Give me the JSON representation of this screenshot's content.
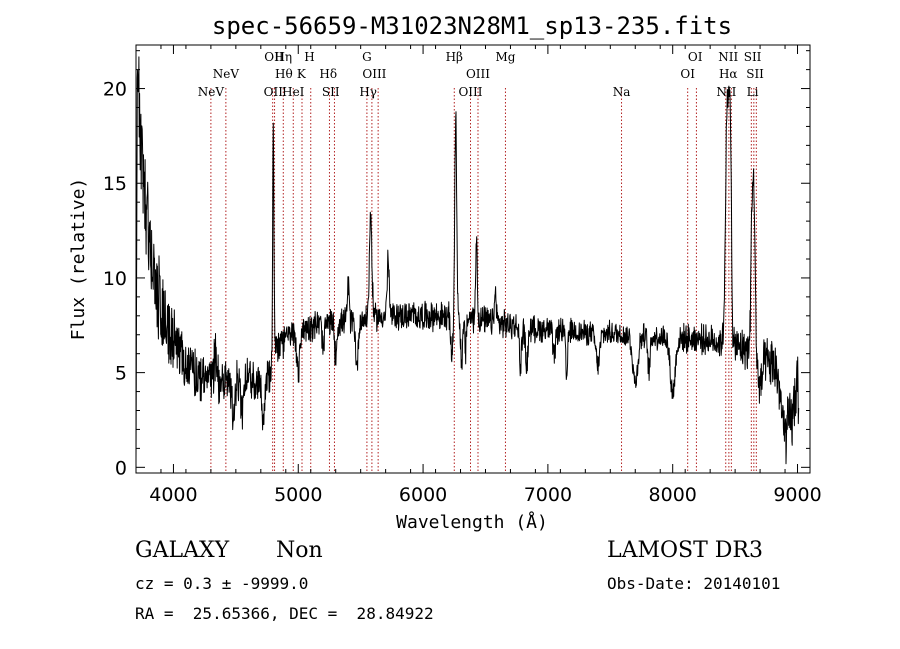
{
  "chart_data": {
    "type": "line",
    "title": "spec-56659-M31023N28M1_sp13-235.fits",
    "xlabel": "Wavelength (Å)",
    "ylabel": "Flux (relative)",
    "xlim": [
      3700,
      9100
    ],
    "ylim": [
      -0.3,
      22.3
    ],
    "xticks": [
      4000,
      5000,
      6000,
      7000,
      8000,
      9000
    ],
    "yticks": [
      0,
      5,
      10,
      15,
      20
    ],
    "xtick_labels": [
      "4000",
      "5000",
      "6000",
      "7000",
      "8000",
      "9000"
    ],
    "ytick_labels": [
      "0",
      "5",
      "10",
      "15",
      "20"
    ],
    "series": [
      {
        "name": "flux",
        "color": "#000000",
        "anchors": [
          [
            3700,
            0.5
          ],
          [
            3712,
            22.0
          ],
          [
            3730,
            18.0
          ],
          [
            3760,
            15.0
          ],
          [
            3800,
            12.5
          ],
          [
            3850,
            10.0
          ],
          [
            3900,
            8.5
          ],
          [
            3950,
            7.5
          ],
          [
            4000,
            6.5
          ],
          [
            4100,
            5.5
          ],
          [
            4200,
            5.0
          ],
          [
            4300,
            4.7
          ],
          [
            4400,
            4.6
          ],
          [
            4500,
            4.6
          ],
          [
            4600,
            4.6
          ],
          [
            4700,
            4.6
          ],
          [
            4780,
            4.8
          ],
          [
            4800,
            6.2
          ],
          [
            4850,
            6.5
          ],
          [
            4900,
            6.8
          ],
          [
            5000,
            7.2
          ],
          [
            5100,
            7.5
          ],
          [
            5200,
            7.6
          ],
          [
            5300,
            7.6
          ],
          [
            5400,
            7.7
          ],
          [
            5500,
            7.8
          ],
          [
            5600,
            7.9
          ],
          [
            5700,
            8.0
          ],
          [
            5800,
            8.0
          ],
          [
            5900,
            8.0
          ],
          [
            6000,
            8.0
          ],
          [
            6100,
            8.0
          ],
          [
            6200,
            7.9
          ],
          [
            6300,
            7.8
          ],
          [
            6400,
            7.9
          ],
          [
            6500,
            7.7
          ],
          [
            6600,
            7.6
          ],
          [
            6700,
            7.5
          ],
          [
            6800,
            7.4
          ],
          [
            6900,
            7.3
          ],
          [
            7000,
            7.3
          ],
          [
            7100,
            7.2
          ],
          [
            7200,
            7.2
          ],
          [
            7300,
            7.1
          ],
          [
            7400,
            7.0
          ],
          [
            7500,
            7.1
          ],
          [
            7600,
            7.0
          ],
          [
            7700,
            7.0
          ],
          [
            7800,
            6.9
          ],
          [
            7900,
            6.9
          ],
          [
            8000,
            6.9
          ],
          [
            8100,
            6.8
          ],
          [
            8200,
            6.8
          ],
          [
            8300,
            6.7
          ],
          [
            8400,
            6.6
          ],
          [
            8500,
            6.4
          ],
          [
            8600,
            6.2
          ],
          [
            8700,
            5.6
          ],
          [
            8800,
            5.4
          ],
          [
            8900,
            5.2
          ],
          [
            9000,
            5.0
          ],
          [
            9010,
            2.0
          ]
        ],
        "features": [
          [
            4800,
            11.5,
            5
          ],
          [
            6262,
            10.5,
            8
          ],
          [
            6428,
            4.5,
            6
          ],
          [
            5580,
            5.5,
            10
          ],
          [
            8433,
            10.0,
            12
          ],
          [
            8460,
            12.0,
            14
          ],
          [
            8638,
            8.5,
            10
          ],
          [
            8655,
            5.5,
            8
          ],
          [
            8480,
            -3.0,
            8
          ],
          [
            6310,
            -2.2,
            8
          ],
          [
            6340,
            -1.8,
            6
          ],
          [
            5470,
            -2.5,
            10
          ],
          [
            4720,
            -2.0,
            10
          ],
          [
            4550,
            -1.5,
            10
          ],
          [
            5720,
            3.0,
            8
          ],
          [
            6830,
            -2.0,
            10
          ],
          [
            8900,
            -3.5,
            30
          ],
          [
            8960,
            -2.0,
            20
          ],
          [
            8000,
            -3.0,
            20
          ],
          [
            7700,
            -2.5,
            20
          ],
          [
            7400,
            -1.6,
            15
          ],
          [
            7050,
            -1.5,
            10
          ],
          [
            5000,
            -2.5,
            10
          ],
          [
            6780,
            -2.2,
            8
          ],
          [
            6230,
            -2.0,
            8
          ],
          [
            5300,
            -1.8,
            8
          ],
          [
            5200,
            -1.5,
            8
          ],
          [
            5400,
            1.8,
            8
          ],
          [
            6580,
            1.5,
            8
          ],
          [
            8700,
            -1.5,
            15
          ],
          [
            4340,
            1.6,
            10
          ],
          [
            4480,
            -1.8,
            10
          ],
          [
            7150,
            -2.5,
            8
          ],
          [
            7810,
            -1.8,
            10
          ]
        ],
        "noise_amplitude": [
          [
            3700,
            3.2
          ],
          [
            4000,
            2.0
          ],
          [
            4500,
            1.3
          ],
          [
            4800,
            1.0
          ],
          [
            5500,
            0.8
          ],
          [
            6300,
            0.9
          ],
          [
            7500,
            0.7
          ],
          [
            8300,
            0.9
          ],
          [
            8700,
            1.4
          ],
          [
            9000,
            2.0
          ]
        ]
      }
    ],
    "line_markers": [
      {
        "wavelength": 4300,
        "label": "NeV",
        "row": 2
      },
      {
        "wavelength": 4420,
        "label": "NeV",
        "row": 1
      },
      {
        "wavelength": 4805,
        "label": "OII",
        "row": 0
      },
      {
        "wavelength": 4800,
        "label": "OII",
        "row": 2
      },
      {
        "wavelength": 4880,
        "label": "Hη",
        "row": 0
      },
      {
        "wavelength": 4885,
        "label": "Hθ",
        "row": 1
      },
      {
        "wavelength": 4960,
        "label": "HeI",
        "row": 2
      },
      {
        "wavelength": 5090,
        "label": "H",
        "row": 0
      },
      {
        "wavelength": 5025,
        "label": "K",
        "row": 1
      },
      {
        "wavelength": 5240,
        "label": "Hδ",
        "row": 1
      },
      {
        "wavelength": 5260,
        "label": "SII",
        "row": 2
      },
      {
        "wavelength": 5550,
        "label": "G",
        "row": 0
      },
      {
        "wavelength": 5610,
        "label": "OIII",
        "row": 1
      },
      {
        "wavelength": 5560,
        "label": "Hγ",
        "row": 2
      },
      {
        "wavelength": 6250,
        "label": "Hβ",
        "row": 0
      },
      {
        "wavelength": 6440,
        "label": "OIII",
        "row": 1
      },
      {
        "wavelength": 6380,
        "label": "OIII",
        "row": 2
      },
      {
        "wavelength": 6660,
        "label": "Mg",
        "row": 0
      },
      {
        "wavelength": 7590,
        "label": "Na",
        "row": 2
      },
      {
        "wavelength": 8180,
        "label": "OI",
        "row": 0
      },
      {
        "wavelength": 8120,
        "label": "OI",
        "row": 1
      },
      {
        "wavelength": 8445,
        "label": "NII",
        "row": 0
      },
      {
        "wavelength": 8445,
        "label": "Hα",
        "row": 1
      },
      {
        "wavelength": 8430,
        "label": "NII",
        "row": 2
      },
      {
        "wavelength": 8640,
        "label": "SII",
        "row": 0
      },
      {
        "wavelength": 8660,
        "label": "SII",
        "row": 1
      },
      {
        "wavelength": 8640,
        "label": "Li",
        "row": 2
      }
    ],
    "marker_line_wavelengths": [
      4300,
      4420,
      4795,
      4810,
      4880,
      4960,
      5030,
      5100,
      5250,
      5290,
      5550,
      5590,
      5640,
      6250,
      6380,
      6440,
      6660,
      7590,
      8120,
      8190,
      8425,
      8450,
      8470,
      8630,
      8650,
      8670
    ]
  },
  "info": {
    "object_class": "GALAXY",
    "subclass": "Non",
    "survey": "LAMOST DR3",
    "cz": "cz = 0.3 ± -9999.0",
    "obs_date": "Obs-Date: 20140101",
    "coords": "RA =  25.65366, DEC =  28.84922"
  },
  "colors": {
    "spectrum": "#000000",
    "marker_line": "#b22222",
    "background": "#ffffff"
  }
}
